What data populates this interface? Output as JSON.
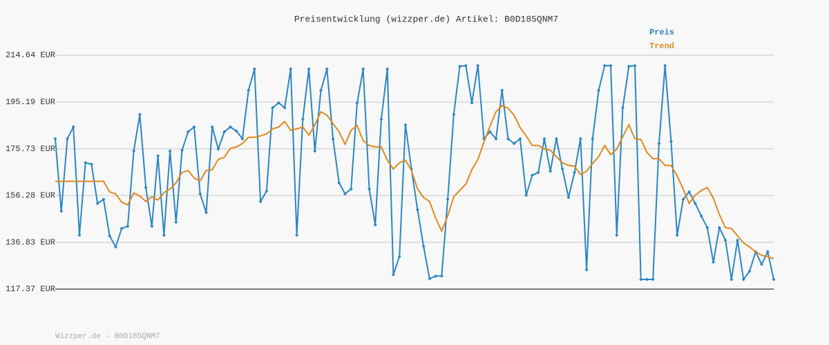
{
  "chart_data": {
    "type": "line",
    "title": "Preisentwicklung (wizzper.de) Artikel: B0D185QNM7",
    "footer": "Wizzper.de - B0D185QNM7",
    "ylim": [
      117.37,
      214.64
    ],
    "yticks": [
      {
        "value": 117.37,
        "label": "117.37 EUR"
      },
      {
        "value": 136.83,
        "label": "136.83 EUR"
      },
      {
        "value": 156.28,
        "label": "156.28 EUR"
      },
      {
        "value": 175.73,
        "label": "175.73 EUR"
      },
      {
        "value": 195.19,
        "label": "195.19 EUR"
      },
      {
        "value": 214.64,
        "label": "214.64 EUR"
      }
    ],
    "grid": true,
    "legend": "top-right",
    "series": [
      {
        "name": "Preis",
        "color": "#2a86c0",
        "markers": true,
        "values": [
          179.9,
          149.8,
          179.9,
          184.8,
          139.8,
          169.9,
          169.3,
          153.0,
          154.7,
          139.5,
          134.9,
          142.6,
          143.5,
          174.8,
          190.0,
          159.6,
          143.5,
          172.8,
          139.8,
          174.8,
          145.2,
          175.1,
          182.8,
          184.8,
          157.0,
          149.2,
          184.8,
          175.6,
          182.8,
          184.8,
          183.1,
          179.9,
          200.0,
          208.9,
          153.8,
          158.1,
          192.8,
          194.8,
          192.8,
          208.9,
          139.8,
          188.0,
          208.9,
          174.8,
          200.0,
          208.9,
          179.9,
          161.6,
          157.0,
          159.0,
          194.8,
          208.9,
          159.0,
          144.1,
          188.0,
          208.9,
          123.4,
          130.9,
          185.7,
          167.3,
          150.4,
          135.2,
          121.7,
          122.8,
          122.8,
          154.7,
          190.0,
          210.0,
          210.3,
          194.8,
          210.3,
          179.9,
          182.8,
          179.9,
          200.0,
          179.9,
          177.9,
          179.9,
          156.4,
          164.7,
          165.9,
          179.9,
          166.4,
          179.9,
          167.3,
          155.5,
          165.9,
          179.9,
          125.4,
          179.9,
          200.0,
          210.3,
          210.3,
          139.8,
          192.8,
          210.0,
          210.3,
          121.4,
          121.4,
          121.4,
          177.9,
          210.3,
          178.8,
          139.8,
          154.7,
          157.8,
          153.0,
          147.8,
          142.9,
          128.6,
          142.9,
          137.7,
          121.4,
          137.7,
          121.4,
          124.8,
          132.9,
          127.7,
          132.9,
          121.4
        ]
      },
      {
        "name": "Trend",
        "color": "#e0891c",
        "markers": false,
        "values": [
          162.2,
          162.2,
          162.2,
          162.2,
          162.2,
          162.2,
          162.2,
          162.2,
          162.2,
          157.8,
          157.0,
          153.5,
          152.4,
          157.3,
          156.1,
          153.8,
          155.8,
          154.4,
          157.5,
          159.0,
          161.6,
          165.9,
          166.7,
          163.6,
          162.4,
          166.7,
          167.0,
          171.3,
          172.2,
          175.9,
          176.5,
          177.9,
          180.5,
          180.5,
          181.1,
          181.9,
          184.0,
          184.8,
          187.1,
          183.4,
          184.0,
          184.8,
          181.4,
          185.7,
          191.1,
          189.7,
          186.2,
          182.8,
          177.6,
          183.4,
          185.4,
          179.1,
          177.1,
          176.5,
          176.5,
          171.0,
          167.3,
          169.9,
          171.0,
          166.7,
          159.0,
          155.5,
          153.8,
          146.9,
          141.5,
          147.8,
          155.8,
          158.4,
          161.0,
          167.0,
          171.3,
          178.5,
          185.1,
          191.1,
          193.7,
          192.6,
          189.7,
          184.5,
          181.1,
          177.1,
          177.1,
          175.6,
          175.1,
          172.5,
          169.9,
          168.8,
          168.5,
          165.0,
          166.4,
          169.6,
          172.5,
          177.1,
          173.3,
          175.6,
          180.8,
          185.7,
          179.9,
          179.6,
          174.2,
          171.6,
          171.6,
          168.8,
          168.8,
          164.4,
          159.0,
          153.0,
          156.4,
          158.4,
          159.6,
          155.2,
          148.4,
          142.9,
          142.6,
          139.5,
          136.6,
          134.9,
          132.9,
          131.4,
          130.9,
          130.0
        ]
      }
    ]
  }
}
